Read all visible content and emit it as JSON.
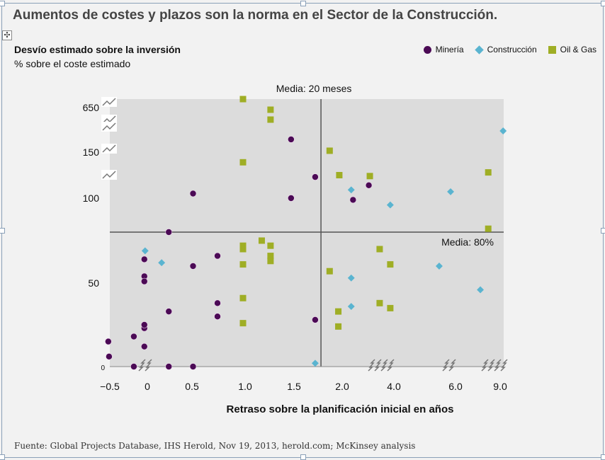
{
  "title": "Aumentos de costes y plazos son la norma en el Sector de la Construcción.",
  "move_icon": "move-icon",
  "chart_data": {
    "type": "scatter",
    "title": "Aumentos de costes y plazos son la norma en el Sector de la Construcción.",
    "ylabel": "Desvío estimado sobre la inversión",
    "ylabel_sub": "% sobre el coste estimado",
    "xlabel": "Retraso sobre la planificación inicial en años",
    "x_ticks": [
      {
        "v": -0.5,
        "label": "−0.5"
      },
      {
        "v": 0,
        "label": "0"
      },
      {
        "v": 0.5,
        "label": "0.5"
      },
      {
        "v": 1.0,
        "label": "1.0"
      },
      {
        "v": 1.5,
        "label": "1.5"
      },
      {
        "v": 2.0,
        "label": "2.0"
      },
      {
        "v": 4.0,
        "label": "4.0"
      },
      {
        "v": 6.0,
        "label": "6.0"
      },
      {
        "v": 9.0,
        "label": "9.0"
      }
    ],
    "y_ticks": [
      {
        "v": 0,
        "label": "0"
      },
      {
        "v": 50,
        "label": "50"
      },
      {
        "v": 100,
        "label": "100"
      },
      {
        "v": 150,
        "label": "150"
      },
      {
        "v": 650,
        "label": "650"
      }
    ],
    "xlim": [
      -0.5,
      9.2
    ],
    "ylim": [
      0,
      745
    ],
    "axis_breaks": "broken (non-linear) axes",
    "legend_position": "top-right",
    "reference_lines": [
      {
        "axis": "x",
        "value": 1.78,
        "label": "Media: 20 meses"
      },
      {
        "axis": "y",
        "value": 80,
        "label": "Media: 80%"
      }
    ],
    "series": [
      {
        "name": "Minería",
        "marker": "circle",
        "color": "#4b0a55",
        "points": [
          [
            -0.52,
            15
          ],
          [
            -0.51,
            6
          ],
          [
            -0.18,
            18
          ],
          [
            -0.18,
            0
          ],
          [
            -0.04,
            64
          ],
          [
            -0.04,
            54
          ],
          [
            -0.04,
            51
          ],
          [
            -0.04,
            23
          ],
          [
            -0.04,
            25
          ],
          [
            -0.04,
            12
          ],
          [
            0.24,
            80
          ],
          [
            0.24,
            33
          ],
          [
            0.24,
            0
          ],
          [
            0.51,
            105
          ],
          [
            0.51,
            60
          ],
          [
            0.51,
            0
          ],
          [
            0.74,
            66
          ],
          [
            0.74,
            38
          ],
          [
            0.74,
            30
          ],
          [
            1.47,
            293
          ],
          [
            1.47,
            100
          ],
          [
            1.72,
            123
          ],
          [
            1.72,
            28
          ],
          [
            2.42,
            99
          ],
          [
            3.03,
            114
          ]
        ]
      },
      {
        "name": "Construcción",
        "marker": "diamond",
        "color": "#5ab4d0",
        "points": [
          [
            -0.03,
            69
          ],
          [
            0.16,
            62
          ],
          [
            1.72,
            2
          ],
          [
            2.35,
            109
          ],
          [
            2.35,
            53
          ],
          [
            2.35,
            36
          ],
          [
            3.86,
            96
          ],
          [
            5.84,
            107
          ],
          [
            5.47,
            60
          ],
          [
            7.67,
            46
          ],
          [
            9.2,
            388
          ]
        ]
      },
      {
        "name": "Oil & Gas",
        "marker": "square",
        "color": "#9fae25",
        "points": [
          [
            0.98,
            745
          ],
          [
            1.26,
            626
          ],
          [
            1.26,
            515
          ],
          [
            0.98,
            139
          ],
          [
            1.87,
            166
          ],
          [
            1.97,
            125
          ],
          [
            3.07,
            124
          ],
          [
            8.2,
            128
          ],
          [
            8.2,
            82
          ],
          [
            1.17,
            75
          ],
          [
            0.98,
            72
          ],
          [
            0.98,
            70
          ],
          [
            1.26,
            72
          ],
          [
            1.26,
            66
          ],
          [
            1.26,
            63
          ],
          [
            0.98,
            61
          ],
          [
            1.87,
            57
          ],
          [
            3.45,
            70
          ],
          [
            3.86,
            61
          ],
          [
            0.98,
            41
          ],
          [
            0.98,
            26
          ],
          [
            1.96,
            33
          ],
          [
            1.96,
            24
          ],
          [
            3.45,
            38
          ],
          [
            3.86,
            35
          ]
        ]
      }
    ]
  },
  "source": "Fuente: Global Projects Database, IHS Herold, Nov 19, 2013, herold.com; McKinsey analysis"
}
